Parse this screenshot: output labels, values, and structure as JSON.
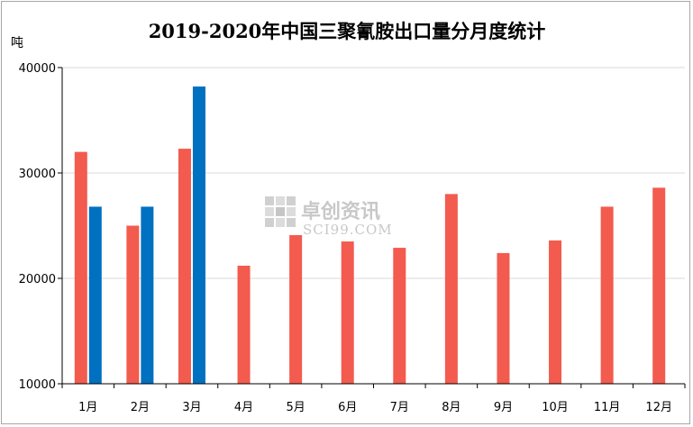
{
  "chart_data": {
    "type": "bar",
    "title": "2019-2020年中国三聚氰胺出口量分月度统计",
    "ylabel": "吨",
    "xlabel": "",
    "ylim": [
      10000,
      40000
    ],
    "yticks": [
      "10000",
      "20000",
      "30000",
      "40000"
    ],
    "grid": true,
    "categories": [
      "1月",
      "2月",
      "3月",
      "4月",
      "5月",
      "6月",
      "7月",
      "8月",
      "9月",
      "10月",
      "11月",
      "12月"
    ],
    "series": [
      {
        "values": [
          32000,
          25000,
          32300,
          21200,
          24100,
          23500,
          22900,
          28000,
          22400,
          23600,
          26800,
          28600
        ],
        "color": "#f25b4e"
      },
      {
        "values": [
          26800,
          26800,
          38200,
          null,
          null,
          null,
          null,
          null,
          null,
          null,
          null,
          null
        ],
        "color": "#0070c0"
      }
    ]
  },
  "watermark": {
    "name": "卓创资讯",
    "domain": "SCI99.COM"
  }
}
